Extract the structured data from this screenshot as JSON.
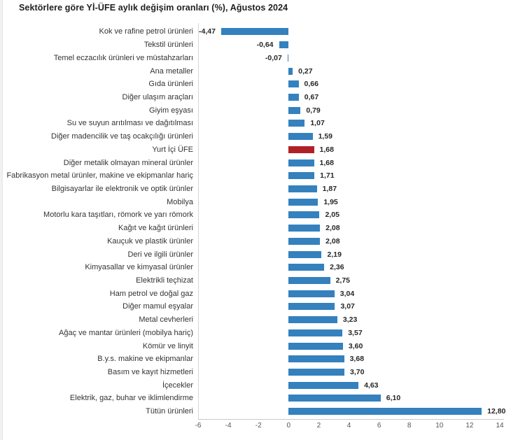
{
  "title": "Sektörlere göre Yİ-ÜFE aylık değişim oranları (%), Ağustos 2024",
  "colors": {
    "bar_default": "#3481be",
    "bar_highlight": "#b02126",
    "axis_line": "#c9c9c9",
    "tick_text": "#555555",
    "label_text": "#333333"
  },
  "chart_data": {
    "type": "bar",
    "orientation": "horizontal",
    "title": "Sektörlere göre Yİ-ÜFE aylık değişim oranları (%), Ağustos 2024",
    "xlabel": "",
    "ylabel": "",
    "xlim": [
      -6,
      14
    ],
    "xticks": [
      -6,
      -4,
      -2,
      0,
      2,
      4,
      6,
      8,
      10,
      12,
      14
    ],
    "grid": false,
    "legend": false,
    "highlight_category": "Yurt İçi ÜFE",
    "categories": [
      "Kok ve rafine petrol ürünleri",
      "Tekstil ürünleri",
      "Temel eczacılık ürünleri ve müstahzarları",
      "Ana metaller",
      "Gıda ürünleri",
      "Diğer ulaşım araçları",
      "Giyim eşyası",
      "Su ve suyun arıtılması ve dağıtılması",
      "Diğer madencilik ve taş ocakçılığı ürünleri",
      "Yurt İçi ÜFE",
      "Diğer metalik olmayan mineral ürünler",
      "Fabrikasyon metal ürünler, makine ve ekipmanlar hariç",
      "Bilgisayarlar ile elektronik ve optik ürünler",
      "Mobilya",
      "Motorlu kara taşıtları, römork ve yarı römork",
      "Kağıt ve kağıt ürünleri",
      "Kauçuk ve plastik ürünler",
      "Deri ve ilgili ürünler",
      "Kimyasallar ve kimyasal ürünler",
      "Elektrikli teçhizat",
      "Ham petrol ve doğal gaz",
      "Diğer mamul eşyalar",
      "Metal cevherleri",
      "Ağaç ve mantar ürünleri (mobilya hariç)",
      "Kömür ve linyit",
      "B.y.s. makine ve ekipmanlar",
      "Basım ve kayıt hizmetleri",
      "İçecekler",
      "Elektrik, gaz, buhar ve iklimlendirme",
      "Tütün ürünleri"
    ],
    "values": [
      -4.47,
      -0.64,
      -0.07,
      0.27,
      0.66,
      0.67,
      0.79,
      1.07,
      1.59,
      1.68,
      1.68,
      1.71,
      1.87,
      1.95,
      2.05,
      2.08,
      2.08,
      2.19,
      2.36,
      2.75,
      3.04,
      3.07,
      3.23,
      3.57,
      3.6,
      3.68,
      3.7,
      4.63,
      6.1,
      12.8
    ],
    "value_labels": [
      "-4,47",
      "-0,64",
      "-0,07",
      "0,27",
      "0,66",
      "0,67",
      "0,79",
      "1,07",
      "1,59",
      "1,68",
      "1,68",
      "1,71",
      "1,87",
      "1,95",
      "2,05",
      "2,08",
      "2,08",
      "2,19",
      "2,36",
      "2,75",
      "3,04",
      "3,07",
      "3,23",
      "3,57",
      "3,60",
      "3,68",
      "3,70",
      "4,63",
      "6,10",
      "12,80"
    ]
  }
}
